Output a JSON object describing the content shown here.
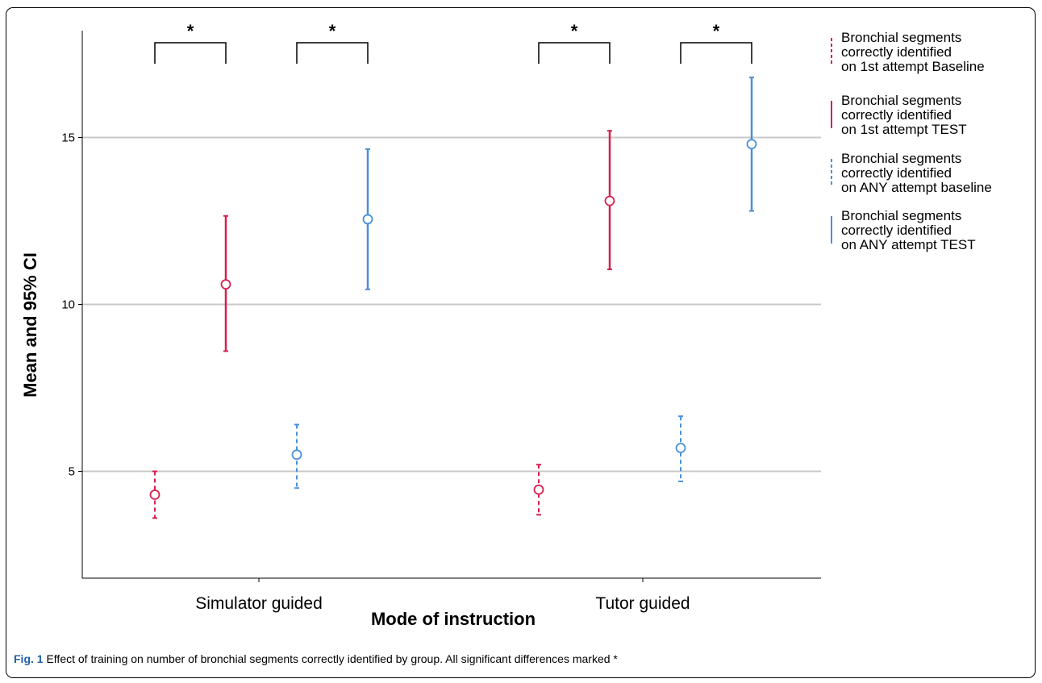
{
  "chart_data": {
    "type": "errorbar",
    "categories": [
      "Simulator guided",
      "Tutor guided"
    ],
    "xlabel": "Mode of instruction",
    "ylabel": "Mean and 95% CI",
    "ylim": [
      1.8,
      18.2
    ],
    "yticks": [
      5,
      10,
      15
    ],
    "grid": true,
    "legend_position": "right",
    "series": [
      {
        "name": "Bronchial segments correctly identified on 1st attempt Baseline",
        "legend_lines": [
          "Bronchial segments",
          "correctly identified",
          "on 1st attempt Baseline"
        ],
        "color": "#d6204e",
        "dashed": true,
        "mean": [
          4.3,
          4.45
        ],
        "ci_low": [
          3.6,
          3.7
        ],
        "ci_high": [
          5.0,
          5.2
        ]
      },
      {
        "name": "Bronchial segments correctly identified on 1st attempt TEST",
        "legend_lines": [
          "Bronchial segments",
          "correctly identified",
          "on 1st attempt TEST"
        ],
        "color": "#d6204e",
        "dashed": false,
        "mean": [
          10.6,
          13.1
        ],
        "ci_low": [
          8.6,
          11.05
        ],
        "ci_high": [
          12.65,
          15.2
        ]
      },
      {
        "name": "Bronchial segments correctly identified on ANY attempt baseline",
        "legend_lines": [
          "Bronchial segments",
          "correctly identified",
          "on ANY attempt baseline"
        ],
        "color": "#4a90d9",
        "dashed": true,
        "mean": [
          5.5,
          5.7
        ],
        "ci_low": [
          4.5,
          4.7
        ],
        "ci_high": [
          6.4,
          6.65
        ]
      },
      {
        "name": "Bronchial segments correctly identified on ANY attempt TEST",
        "legend_lines": [
          "Bronchial segments",
          "correctly identified",
          "on ANY attempt TEST"
        ],
        "color": "#4a90d9",
        "dashed": false,
        "mean": [
          12.55,
          14.8
        ],
        "ci_low": [
          10.45,
          12.8
        ],
        "ci_high": [
          14.65,
          16.8
        ]
      }
    ],
    "significance": [
      {
        "category": 0,
        "between_series": [
          0,
          1
        ],
        "label": "*"
      },
      {
        "category": 0,
        "between_series": [
          2,
          3
        ],
        "label": "*"
      },
      {
        "category": 1,
        "between_series": [
          0,
          1
        ],
        "label": "*"
      },
      {
        "category": 1,
        "between_series": [
          2,
          3
        ],
        "label": "*"
      }
    ]
  },
  "caption": {
    "label": "Fig. 1",
    "text": " Effect of training on number of bronchial segments correctly identified by group. All significant differences marked *"
  }
}
